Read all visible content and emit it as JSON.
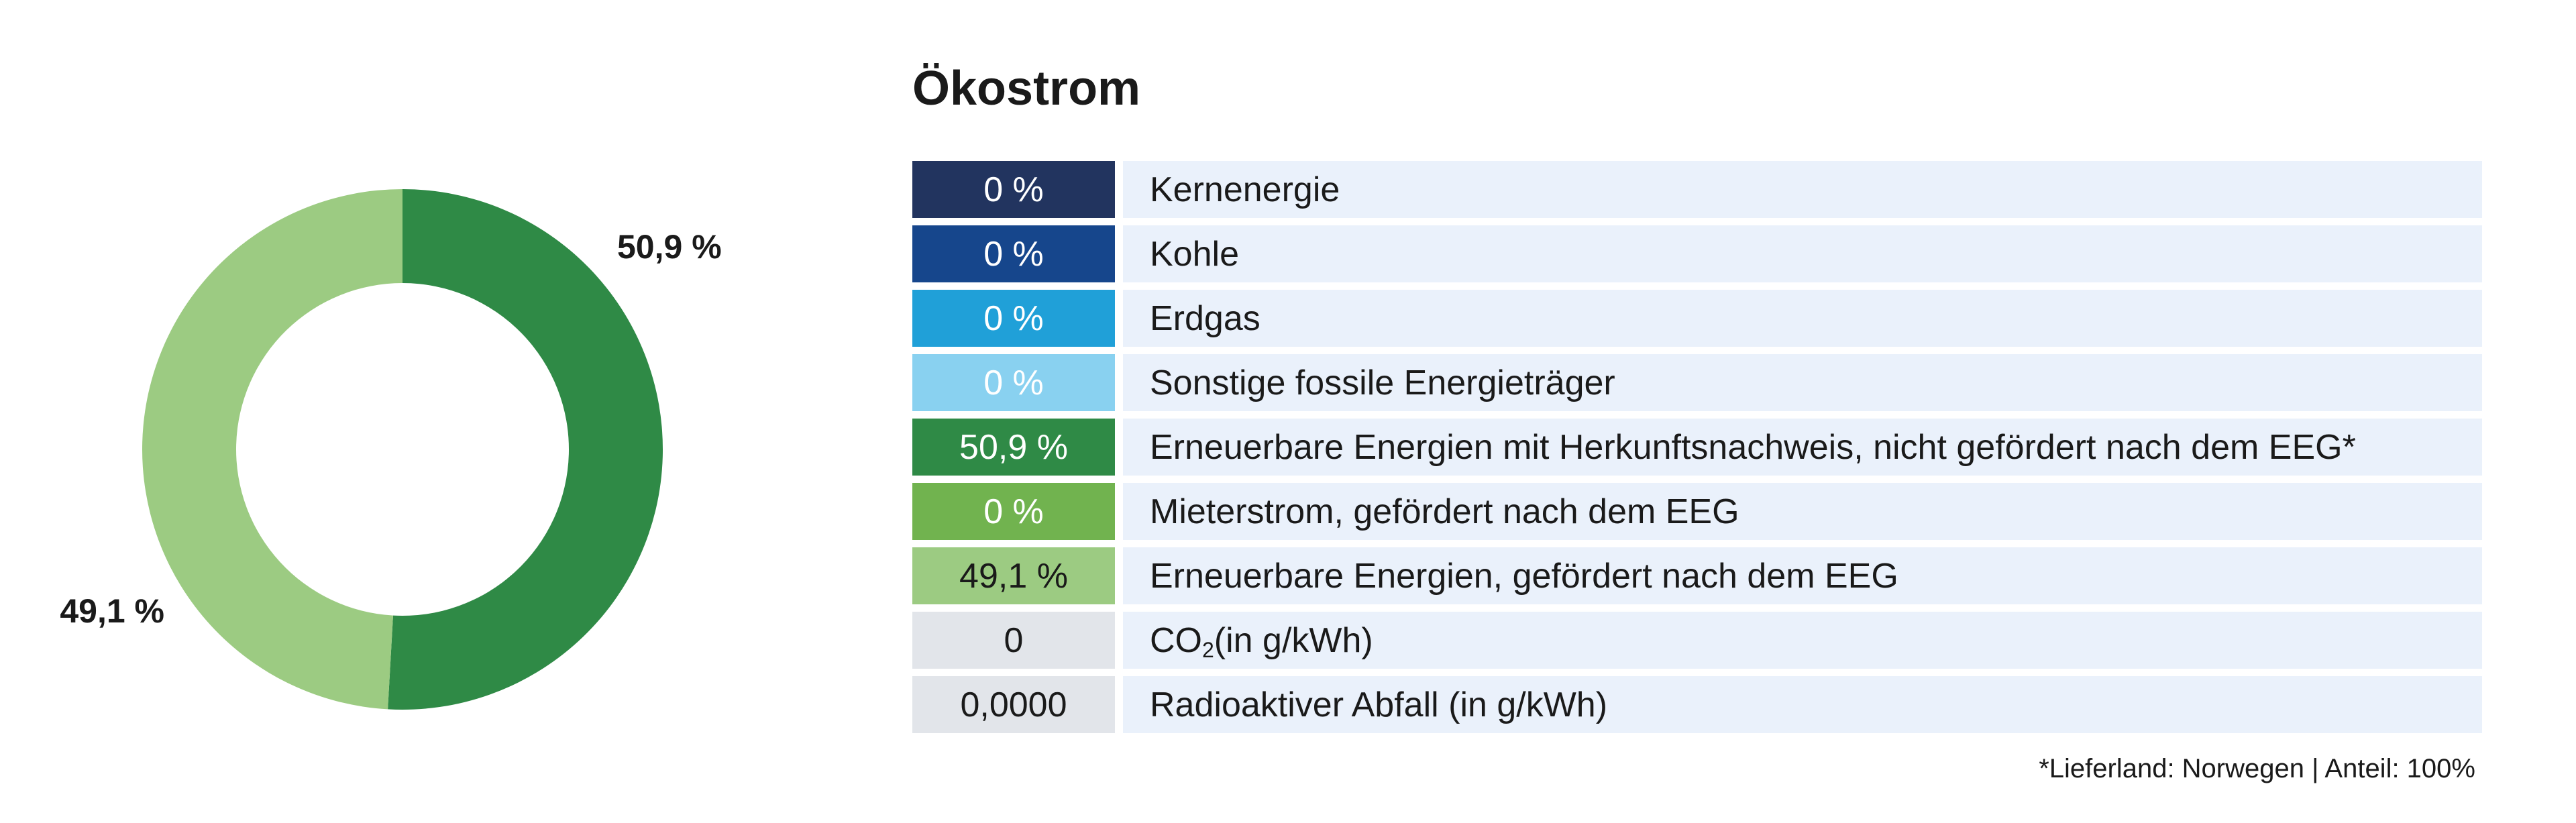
{
  "title": "Ökostrom",
  "footnote": "*Lieferland: Norwegen | Anteil: 100%",
  "legend": [
    {
      "value": "0 %",
      "label": "Kernenergie",
      "color": "#22345f",
      "text_color": "#ffffff"
    },
    {
      "value": "0 %",
      "label": "Kohle",
      "color": "#16468c",
      "text_color": "#ffffff"
    },
    {
      "value": "0 %",
      "label": "Erdgas",
      "color": "#20a0d8",
      "text_color": "#ffffff"
    },
    {
      "value": "0 %",
      "label": "Sonstige fossile Energieträger",
      "color": "#89d1f0",
      "text_color": "#ffffff"
    },
    {
      "value": "50,9 %",
      "label": "Erneuerbare Energien mit Herkunftsnachweis, nicht gefördert nach dem EEG*",
      "color": "#2f8a46",
      "text_color": "#ffffff"
    },
    {
      "value": "0 %",
      "label": "Mieterstrom, gefördert nach dem EEG",
      "color": "#71b34f",
      "text_color": "#ffffff"
    },
    {
      "value": "49,1 %",
      "label": "Erneuerbare Energien, gefördert nach dem EEG",
      "color": "#9ccb82",
      "text_color": "#1a1a1a"
    },
    {
      "value": "0",
      "label": "CO",
      "label_sub": "2",
      "label_suffix": " (in g/kWh)",
      "color": "#e2e5ea",
      "text_color": "#1a1a1a"
    },
    {
      "value": "0,0000",
      "label": "Radioaktiver Abfall (in g/kWh)",
      "color": "#e2e5ea",
      "text_color": "#1a1a1a"
    }
  ],
  "chart_data": {
    "type": "pie",
    "variant": "donut",
    "slices": [
      {
        "label": "50,9 %",
        "value": 50.9,
        "color": "#2f8a46"
      },
      {
        "label": "49,1 %",
        "value": 49.1,
        "color": "#9ccb82"
      }
    ]
  }
}
